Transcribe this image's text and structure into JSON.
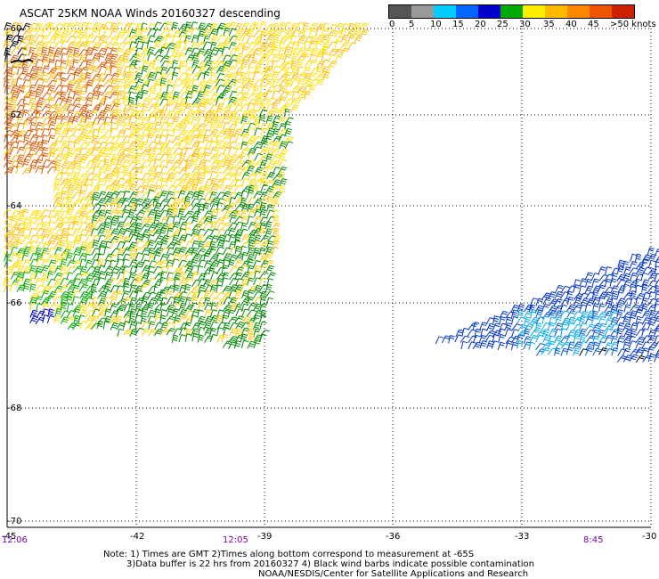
{
  "title": "ASCAT 25KM NOAA Winds 20160327 descending",
  "legend": {
    "colors": [
      "#555555",
      "#999999",
      "#00ccff",
      "#0066ff",
      "#0000cc",
      "#00aa00",
      "#ffee00",
      "#ffbb00",
      "#ff8800",
      "#ee5500",
      "#cc2200",
      "#993300",
      "#cc9966",
      "#ff00ff",
      "#cc00cc",
      "#660099"
    ],
    "labels": [
      "0",
      "5",
      "10",
      "15",
      "20",
      "25",
      "30",
      "35",
      "40",
      "45",
      ">50 knots"
    ]
  },
  "axes": {
    "latitudes": [
      "-60",
      "-62",
      "-64",
      "-66",
      "-68",
      "-70"
    ],
    "longitudes": [
      "-45",
      "-42",
      "-39",
      "-36",
      "-33",
      "-30"
    ]
  },
  "times": [
    "12:06",
    "12:05",
    "8:45"
  ],
  "notes": [
    "Note: 1) Times are GMT 2)Times along bottom correspond to measurement at -65S",
    "3)Data buffer is 22 hrs from 20160327 4) Black wind barbs indicate possible contamination",
    "NOAA/NESDIS/Center for Satellite Applications and Research"
  ],
  "swaths": {
    "west": {
      "description_colors": [
        "#ffdd00",
        "#ee6600",
        "#009900",
        "#0000cc"
      ]
    },
    "east": {
      "description_colors": [
        "#0033cc",
        "#00aaee",
        "#000000"
      ]
    }
  }
}
